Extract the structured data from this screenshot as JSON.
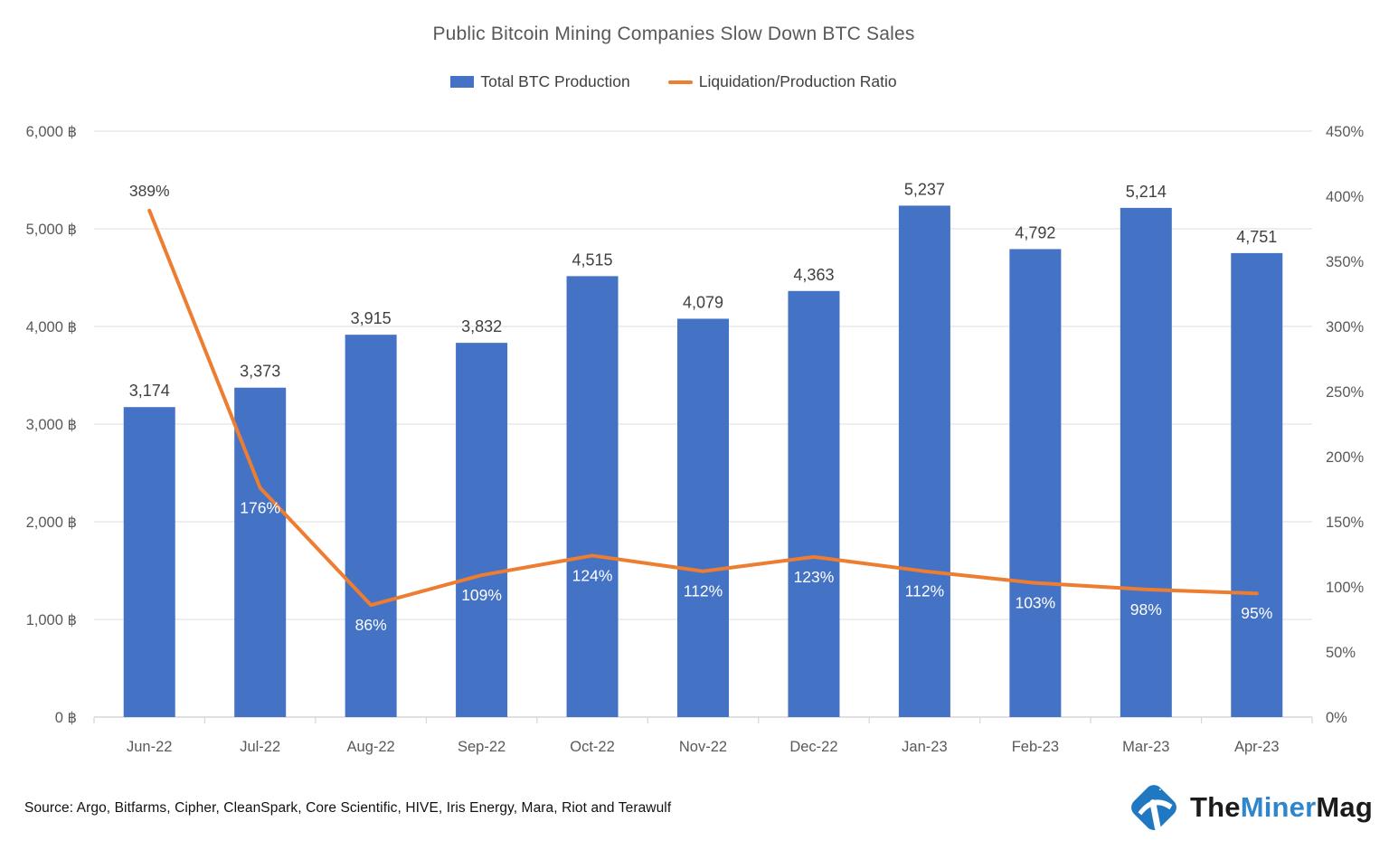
{
  "title": "Public Bitcoin Mining Companies Slow Down BTC Sales",
  "legend": [
    {
      "label": "Total BTC Production",
      "type": "bar",
      "color": "#4472C4"
    },
    {
      "label": "Liquidation/Production Ratio",
      "type": "line",
      "color": "#ED7D31"
    }
  ],
  "source_note": "Source: Argo, Bitfarms, Cipher, CleanSpark, Core Scientific, HIVE, Iris Energy, Mara, Riot and Terawulf",
  "logo": {
    "part1": "The",
    "part2": "Miner",
    "part3": "Mag",
    "icon": "pickaxe-icon",
    "icon_color": "#1f78c1",
    "accent_color": "#2e86cd"
  },
  "chart_data": {
    "type": "bar+line",
    "title": "Public Bitcoin Mining Companies Slow Down BTC Sales",
    "categories": [
      "Jun-22",
      "Jul-22",
      "Aug-22",
      "Sep-22",
      "Oct-22",
      "Nov-22",
      "Dec-22",
      "Jan-23",
      "Feb-23",
      "Mar-23",
      "Apr-23"
    ],
    "series": [
      {
        "name": "Total BTC Production",
        "type": "bar",
        "axis": "left",
        "color": "#4472C4",
        "values": [
          3174,
          3373,
          3915,
          3832,
          4515,
          4079,
          4363,
          5237,
          4792,
          5214,
          4751
        ],
        "labels": [
          "3,174",
          "3,373",
          "3,915",
          "3,832",
          "4,515",
          "4,079",
          "4,363",
          "5,237",
          "4,792",
          "5,214",
          "4,751"
        ],
        "label_color": "#404040"
      },
      {
        "name": "Liquidation/Production Ratio",
        "type": "line",
        "axis": "right",
        "color": "#ED7D31",
        "values": [
          389,
          176,
          86,
          109,
          124,
          112,
          123,
          112,
          103,
          98,
          95
        ],
        "labels": [
          "389%",
          "176%",
          "86%",
          "109%",
          "124%",
          "112%",
          "123%",
          "112%",
          "103%",
          "98%",
          "95%"
        ],
        "label_placement": [
          "above",
          "below",
          "below",
          "below",
          "below",
          "below",
          "below",
          "below",
          "below",
          "below",
          "below"
        ],
        "label_color_above": "#404040",
        "label_color_below": "#ffffff"
      }
    ],
    "left_axis": {
      "min": 0,
      "max": 6000,
      "step": 1000,
      "ticks": [
        "0 ฿",
        "1,000 ฿",
        "2,000 ฿",
        "3,000 ฿",
        "4,000 ฿",
        "5,000 ฿",
        "6,000 ฿"
      ]
    },
    "right_axis": {
      "min": 0,
      "max": 450,
      "step": 50,
      "ticks": [
        "0%",
        "50%",
        "100%",
        "150%",
        "200%",
        "250%",
        "300%",
        "350%",
        "400%",
        "450%"
      ]
    },
    "grid": true,
    "legend_position": "top",
    "axis_label_color": "#595959",
    "grid_color": "#e4e4e4",
    "axis_line_color": "#d6d6d6"
  }
}
